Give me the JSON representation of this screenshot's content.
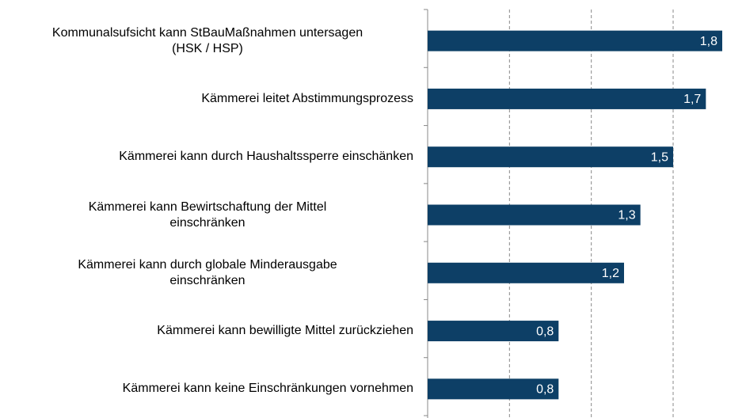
{
  "chart_data": {
    "type": "barh",
    "categories": [
      "Kommunalsufsicht kann StBauMaßnahmen untersagen\n(HSK / HSP)",
      "Kämmerei leitet Abstimmungsprozess",
      "Kämmerei kann durch Haushaltssperre einschänken",
      "Kämmerei kann Bewirtschaftung der Mittel\neinschränken",
      "Kämmerei kann durch globale Minderausgabe\neinschränken",
      "Kämmerei kann bewilligte Mittel zurückziehen",
      "Kämmerei kann keine Einschränkungen vornehmen"
    ],
    "values": [
      1.8,
      1.7,
      1.5,
      1.3,
      1.2,
      0.8,
      0.8
    ],
    "value_labels": [
      "1,8",
      "1,7",
      "1,5",
      "1,3",
      "1,2",
      "0,8",
      "0,8"
    ],
    "color": "#0d3f66",
    "xlim": [
      0,
      1.8
    ],
    "xticks": [
      0,
      0.5,
      1,
      1.5
    ],
    "grid": true
  }
}
